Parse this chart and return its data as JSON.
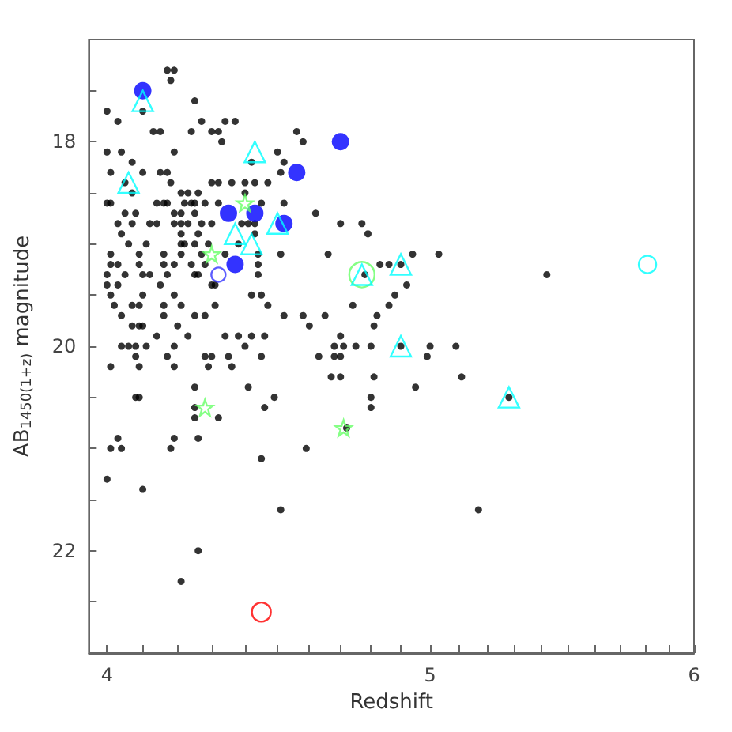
{
  "chart_data": {
    "type": "scatter",
    "xlabel": "Redshift",
    "ylabel": "AB$_{1450(1+z)}$ magnitude",
    "log": "x",
    "grid": false,
    "xlim": [
      3.95,
      6
    ],
    "ylim": [
      23,
      17
    ],
    "xticks": [
      4,
      {
        "value": 4.1,
        "label": null
      },
      {
        "value": 4.2,
        "label": null
      },
      {
        "value": 4.3,
        "label": null
      },
      {
        "value": 4.4,
        "label": null
      },
      {
        "value": 4.5,
        "label": null
      },
      {
        "value": 4.6,
        "label": null
      },
      {
        "value": 4.7,
        "label": null
      },
      {
        "value": 4.8,
        "label": null
      },
      {
        "value": 4.9,
        "label": null
      },
      5,
      {
        "value": 5.1,
        "label": null
      },
      {
        "value": 5.2,
        "label": null
      },
      {
        "value": 5.3,
        "label": null
      },
      {
        "value": 5.4,
        "label": null
      },
      {
        "value": 5.5,
        "label": null
      },
      {
        "value": 5.6,
        "label": null
      },
      {
        "value": 5.7,
        "label": null
      },
      {
        "value": 5.8,
        "label": null
      },
      {
        "value": 5.9,
        "label": null
      },
      6
    ],
    "yticks": [
      {
        "value": 17.5,
        "label": null
      },
      18,
      {
        "value": 18.5,
        "label": null
      },
      {
        "value": 19,
        "label": null
      },
      {
        "value": 19.5,
        "label": null
      },
      20,
      {
        "value": 20.5,
        "label": null
      },
      {
        "value": 21,
        "label": null
      },
      {
        "value": 21.5,
        "label": null
      },
      22,
      {
        "value": 22.5,
        "label": null
      }
    ],
    "series": [
      {
        "color": "#000000",
        "marker": "circle",
        "x": [
          4.17,
          4.19,
          4.18,
          4.25,
          4.0,
          4.1,
          4.03,
          4.27,
          4.34,
          4.37,
          4.13,
          4.15,
          4.24,
          4.3,
          4.32,
          4.56,
          4.33,
          4.58,
          4.0,
          4.04,
          4.19,
          4.5,
          4.07,
          4.42,
          4.52,
          4.01,
          4.1,
          4.15,
          4.17,
          4.51,
          4.05,
          4.18,
          4.3,
          4.32,
          4.36,
          4.4,
          4.43,
          4.47,
          4.07,
          4.21,
          4.23,
          4.26,
          4.4,
          4.0,
          4.01,
          4.14,
          4.16,
          4.17,
          4.22,
          4.24,
          4.25,
          4.28,
          4.32,
          4.45,
          4.52,
          4.05,
          4.08,
          4.19,
          4.21,
          4.25,
          4.62,
          4.03,
          4.07,
          4.12,
          4.14,
          4.19,
          4.21,
          4.23,
          4.27,
          4.3,
          4.39,
          4.41,
          4.43,
          4.7,
          4.77,
          4.04,
          4.21,
          4.26,
          4.43,
          4.79,
          4.06,
          4.11,
          4.21,
          4.22,
          4.25,
          4.29,
          4.38,
          4.01,
          4.09,
          4.16,
          4.21,
          4.27,
          4.34,
          4.44,
          4.51,
          4.66,
          4.94,
          5.03,
          4.01,
          4.03,
          4.09,
          4.16,
          4.19,
          4.24,
          4.28,
          4.44,
          4.83,
          4.86,
          4.9,
          4.0,
          4.05,
          4.1,
          4.12,
          4.17,
          4.25,
          4.26,
          4.44,
          4.78,
          5.42,
          4.0,
          4.03,
          4.15,
          4.3,
          4.31,
          4.92,
          4.01,
          4.1,
          4.19,
          4.42,
          4.45,
          4.88,
          4.02,
          4.07,
          4.09,
          4.16,
          4.21,
          4.31,
          4.47,
          4.74,
          4.86,
          4.04,
          4.16,
          4.25,
          4.28,
          4.52,
          4.58,
          4.65,
          4.82,
          4.07,
          4.09,
          4.1,
          4.2,
          4.6,
          4.81,
          4.14,
          4.23,
          4.34,
          4.38,
          4.42,
          4.46,
          4.7,
          4.04,
          4.06,
          4.08,
          4.11,
          4.19,
          4.4,
          4.68,
          4.71,
          4.75,
          4.8,
          4.9,
          5.0,
          5.09,
          4.08,
          4.17,
          4.28,
          4.3,
          4.35,
          4.45,
          4.63,
          4.68,
          4.7,
          4.99,
          4.01,
          4.09,
          4.19,
          4.29,
          4.36,
          4.67,
          4.7,
          4.81,
          5.11,
          4.25,
          4.41,
          4.95,
          4.08,
          4.09,
          4.49,
          4.8,
          5.28,
          4.25,
          4.46,
          4.8,
          4.25,
          4.32,
          4.72,
          4.03,
          4.19,
          4.26,
          4.01,
          4.04,
          4.18,
          4.59,
          4.45,
          4.0,
          4.1,
          4.51,
          5.17,
          4.26,
          4.21
        ],
        "values": [
          17.3,
          17.3,
          17.4,
          17.6,
          17.7,
          17.7,
          17.8,
          17.8,
          17.8,
          17.8,
          17.9,
          17.9,
          17.9,
          17.9,
          17.9,
          17.9,
          18.0,
          18.0,
          18.1,
          18.1,
          18.1,
          18.1,
          18.2,
          18.2,
          18.2,
          18.3,
          18.3,
          18.3,
          18.3,
          18.3,
          18.4,
          18.4,
          18.4,
          18.4,
          18.4,
          18.4,
          18.4,
          18.4,
          18.5,
          18.5,
          18.5,
          18.5,
          18.5,
          18.6,
          18.6,
          18.6,
          18.6,
          18.6,
          18.6,
          18.6,
          18.6,
          18.6,
          18.6,
          18.6,
          18.6,
          18.7,
          18.7,
          18.7,
          18.7,
          18.7,
          18.7,
          18.8,
          18.8,
          18.8,
          18.8,
          18.8,
          18.8,
          18.8,
          18.8,
          18.8,
          18.8,
          18.8,
          18.8,
          18.8,
          18.8,
          18.9,
          18.9,
          18.9,
          18.9,
          18.9,
          19.0,
          19.0,
          19.0,
          19.0,
          19.0,
          19.0,
          19.0,
          19.1,
          19.1,
          19.1,
          19.1,
          19.1,
          19.1,
          19.1,
          19.1,
          19.1,
          19.1,
          19.1,
          19.2,
          19.2,
          19.2,
          19.2,
          19.2,
          19.2,
          19.2,
          19.2,
          19.2,
          19.2,
          19.2,
          19.3,
          19.3,
          19.3,
          19.3,
          19.3,
          19.3,
          19.3,
          19.3,
          19.3,
          19.3,
          19.4,
          19.4,
          19.4,
          19.4,
          19.4,
          19.4,
          19.5,
          19.5,
          19.5,
          19.5,
          19.5,
          19.5,
          19.6,
          19.6,
          19.6,
          19.6,
          19.6,
          19.6,
          19.6,
          19.6,
          19.6,
          19.7,
          19.7,
          19.7,
          19.7,
          19.7,
          19.7,
          19.7,
          19.7,
          19.8,
          19.8,
          19.8,
          19.8,
          19.8,
          19.8,
          19.9,
          19.9,
          19.9,
          19.9,
          19.9,
          19.9,
          19.9,
          20.0,
          20.0,
          20.0,
          20.0,
          20.0,
          20.0,
          20.0,
          20.0,
          20.0,
          20.0,
          20.0,
          20.0,
          20.0,
          20.1,
          20.1,
          20.1,
          20.1,
          20.1,
          20.1,
          20.1,
          20.1,
          20.1,
          20.1,
          20.2,
          20.2,
          20.2,
          20.2,
          20.2,
          20.3,
          20.3,
          20.3,
          20.3,
          20.4,
          20.4,
          20.4,
          20.5,
          20.5,
          20.5,
          20.5,
          20.5,
          20.6,
          20.6,
          20.6,
          20.7,
          20.7,
          20.8,
          20.9,
          20.9,
          20.9,
          21.0,
          21.0,
          21.0,
          21.0,
          21.1,
          21.3,
          21.4,
          21.6,
          21.6,
          22.0,
          22.3
        ]
      },
      {
        "color": "#0000ff",
        "marker": "circle",
        "x": [
          4.1,
          4.7,
          4.56,
          4.35,
          4.43,
          4.52,
          4.37
        ],
        "values": [
          17.5,
          18.0,
          18.3,
          18.7,
          18.7,
          18.8,
          19.2
        ]
      },
      {
        "color": "#66ff66",
        "marker": "circle",
        "x": [
          4.77
        ],
        "values": [
          19.3
        ]
      },
      {
        "color": "#00ffff",
        "marker": "triangle",
        "x": [
          4.1,
          4.43,
          4.06,
          4.37,
          4.5,
          4.42,
          4.77,
          4.9,
          4.9,
          5.28
        ],
        "values": [
          17.6,
          18.1,
          18.4,
          18.9,
          18.8,
          19.0,
          19.3,
          19.2,
          20.0,
          20.5
        ]
      },
      {
        "color": "#00ffff",
        "marker": "circle",
        "x": [
          5.81
        ],
        "values": [
          19.2
        ]
      },
      {
        "color": "#3333ff",
        "marker": "circle",
        "x": [
          4.32
        ],
        "values": [
          19.3
        ]
      },
      {
        "color": "#66ff66",
        "marker": "star",
        "x": [
          4.4,
          4.3,
          4.28,
          4.71
        ],
        "values": [
          18.6,
          19.1,
          20.6,
          20.8
        ]
      },
      {
        "color": "#ff0000",
        "marker": "circle",
        "x": [
          4.45
        ],
        "values": [
          22.6
        ]
      }
    ]
  }
}
